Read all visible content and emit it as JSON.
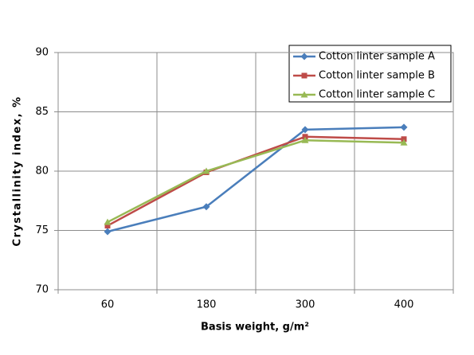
{
  "chart_data": {
    "type": "line",
    "x_label": "Basis weight, g/m²",
    "y_label": "Crystallinity index, %",
    "categories": [
      "60",
      "180",
      "300",
      "400"
    ],
    "series": [
      {
        "name": "Cotton linter sample A",
        "color": "#4a7ebb",
        "marker": "diamond",
        "values": [
          74.9,
          77.0,
          83.5,
          83.7
        ]
      },
      {
        "name": "Cotton linter sample B",
        "color": "#be4b48",
        "marker": "square",
        "values": [
          75.4,
          79.9,
          82.9,
          82.7
        ]
      },
      {
        "name": "Cotton linter sample C",
        "color": "#98b954",
        "marker": "triangle",
        "values": [
          75.7,
          80.0,
          82.6,
          82.4
        ]
      }
    ],
    "ylim": [
      70,
      90
    ],
    "yticks": [
      70,
      75,
      80,
      85,
      90
    ],
    "grid": true,
    "legend": "top-right"
  }
}
